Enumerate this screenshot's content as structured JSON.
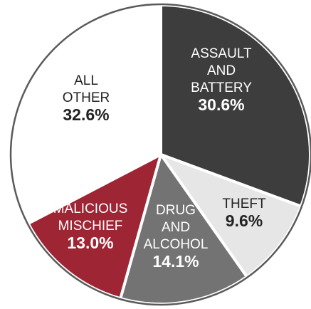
{
  "chart_data": {
    "type": "pie",
    "title": "",
    "start_angle_deg": 0,
    "direction": "clockwise",
    "slices": [
      {
        "lines": [
          "ASSAULT",
          "AND",
          "BATTERY"
        ],
        "pct_label": "30.6%",
        "value": 30.6,
        "color": "#3d3d3d",
        "text_color": "#ffffff"
      },
      {
        "lines": [
          "THEFT"
        ],
        "pct_label": "9.6%",
        "value": 9.6,
        "color": "#e6e6e6",
        "text_color": "#222222"
      },
      {
        "lines": [
          "DRUG",
          "AND",
          "ALCOHOL"
        ],
        "pct_label": "14.1%",
        "value": 14.1,
        "color": "#737373",
        "text_color": "#ffffff"
      },
      {
        "lines": [
          "MALICIOUS",
          "MISCHIEF"
        ],
        "pct_label": "13.0%",
        "value": 13.0,
        "color": "#9e2533",
        "text_color": "#ffffff"
      },
      {
        "lines": [
          "ALL",
          "OTHER"
        ],
        "pct_label": "32.6%",
        "value": 32.6,
        "color": "#ffffff",
        "text_color": "#222222"
      }
    ]
  }
}
